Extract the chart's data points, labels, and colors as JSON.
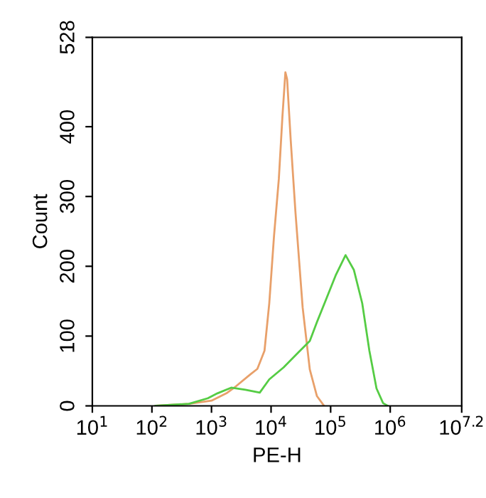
{
  "chart_data": {
    "type": "line",
    "xlabel": "PE-H",
    "ylabel": "Count",
    "log": "x",
    "xlim": [
      10,
      15848932
    ],
    "ylim": [
      0,
      528
    ],
    "xticks": [
      {
        "value": 10,
        "label": "10$^{1}$"
      },
      {
        "value": 100,
        "label": "10$^{2}$"
      },
      {
        "value": 1000,
        "label": "10$^{3}$"
      },
      {
        "value": 10000,
        "label": "10$^{4}$"
      },
      {
        "value": 100000,
        "label": "10$^{5}$"
      },
      {
        "value": 1000000,
        "label": "10$^{6}$"
      },
      {
        "value": 15848932,
        "label": "10$^{7.2}$"
      }
    ],
    "yticks": [
      0,
      100,
      200,
      300,
      400,
      528
    ],
    "grid": false,
    "legend": false,
    "marker": "none",
    "line_style": "solid",
    "series": [
      {
        "color": "#e8a06a",
        "x": [
          115,
          417,
          1000,
          1780,
          2570,
          4470,
          5890,
          7760,
          9330,
          11200,
          13500,
          15500,
          17400,
          18600,
          21400,
          25700,
          33900,
          44700,
          58900,
          77600
        ],
        "values": [
          0,
          3,
          7.5,
          18,
          28,
          45,
          53,
          79,
          147,
          243,
          325,
          414,
          478,
          468,
          380,
          277,
          141,
          52,
          14,
          0
        ]
      },
      {
        "color": "#55cc44",
        "x": [
          115,
          417,
          871,
          1260,
          2140,
          3720,
          6460,
          9330,
          16200,
          28200,
          44700,
          58900,
          85100,
          123000,
          178000,
          245000,
          339000,
          447000,
          589000,
          759000,
          912000
        ],
        "values": [
          0,
          3,
          11,
          18,
          26,
          23,
          19,
          38,
          55,
          76,
          93,
          120,
          154,
          188,
          216,
          195,
          147,
          79,
          25,
          4,
          0
        ]
      }
    ]
  }
}
